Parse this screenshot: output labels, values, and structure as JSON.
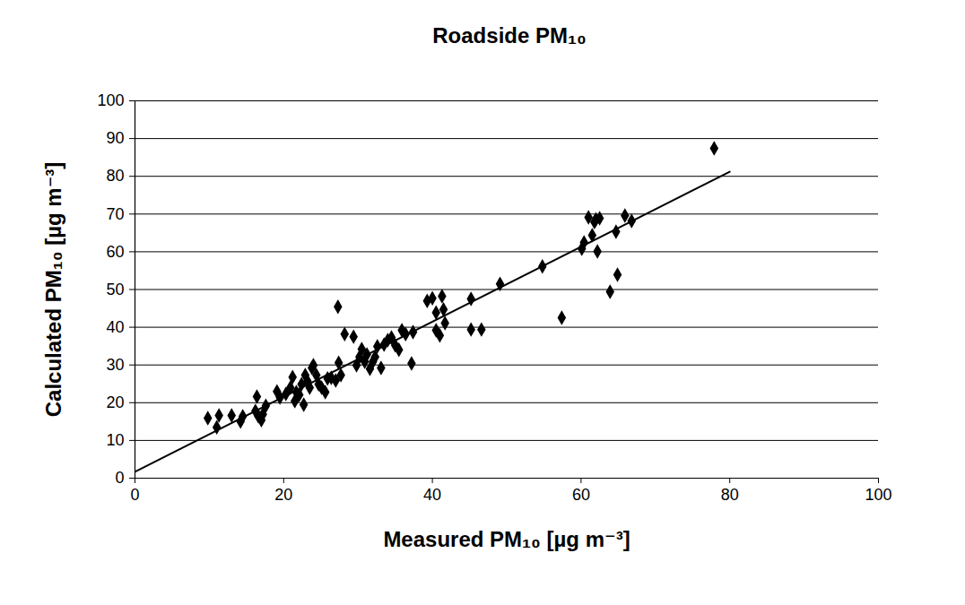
{
  "chart_data": {
    "type": "scatter",
    "title": "Roadside PM₁₀",
    "x_label": "Measured PM₁₀ [µg m⁻³]",
    "y_label": "Calculated PM₁₀ [µg m⁻³]",
    "xlim": [
      0,
      100
    ],
    "xticks": [
      0,
      20,
      40,
      60,
      80,
      100
    ],
    "ylim": [
      0,
      100
    ],
    "yticks": [
      0,
      10,
      20,
      30,
      40,
      50,
      60,
      70,
      80,
      90,
      100
    ],
    "grid": "y",
    "series": [
      {
        "type": "scatter",
        "color": "#000000",
        "marker": "diamond",
        "x": [
          77.9,
          9.8,
          11.0,
          11.3,
          13.0,
          14.2,
          14.5,
          16.2,
          16.4,
          16.6,
          17.0,
          17.2,
          17.6,
          19.1,
          19.5,
          20.3,
          20.9,
          21.2,
          21.5,
          21.7,
          22.1,
          22.4,
          22.7,
          22.9,
          23.2,
          23.5,
          23.8,
          24.0,
          24.4,
          24.7,
          25.1,
          25.6,
          25.9,
          26.4,
          27.0,
          27.3,
          27.4,
          27.7,
          28.2,
          29.4,
          29.8,
          30.2,
          30.5,
          30.9,
          31.2,
          31.6,
          32.0,
          32.3,
          32.6,
          33.1,
          33.5,
          34.0,
          34.5,
          35.0,
          35.5,
          35.9,
          36.4,
          37.2,
          37.4,
          39.3,
          40.0,
          40.5,
          40.5,
          41.0,
          41.3,
          41.5,
          41.7,
          45.2,
          45.2,
          46.6,
          49.1,
          54.8,
          57.4,
          60.1,
          60.4,
          61.0,
          61.5,
          61.8,
          62.0,
          62.2,
          62.5,
          63.9,
          64.7,
          64.9,
          65.9,
          66.8
        ],
        "values": [
          87.4,
          15.9,
          13.5,
          16.6,
          16.6,
          15.0,
          16.4,
          17.8,
          21.6,
          16.4,
          15.4,
          16.9,
          19.2,
          23.0,
          21.4,
          22.3,
          24.0,
          26.8,
          20.4,
          22.8,
          22.1,
          24.9,
          19.5,
          27.3,
          25.7,
          24.0,
          29.2,
          29.9,
          27.3,
          24.9,
          24.0,
          22.8,
          26.4,
          26.6,
          25.9,
          45.4,
          30.6,
          27.3,
          38.2,
          37.5,
          29.9,
          32.1,
          34.2,
          30.9,
          32.8,
          29.0,
          30.9,
          32.1,
          34.9,
          29.2,
          35.4,
          36.6,
          37.3,
          35.2,
          34.0,
          39.2,
          38.2,
          30.4,
          38.7,
          47.0,
          47.7,
          43.9,
          39.2,
          37.8,
          48.2,
          44.7,
          41.1,
          47.5,
          39.4,
          39.4,
          51.5,
          56.1,
          42.5,
          60.8,
          62.5,
          69.1,
          64.4,
          67.9,
          68.6,
          60.1,
          68.9,
          49.4,
          65.3,
          53.9,
          69.6,
          68.2
        ]
      },
      {
        "type": "line",
        "color": "#000000",
        "line_style": "solid",
        "x": [
          0,
          80
        ],
        "values": [
          1.7,
          81.2
        ]
      }
    ]
  }
}
